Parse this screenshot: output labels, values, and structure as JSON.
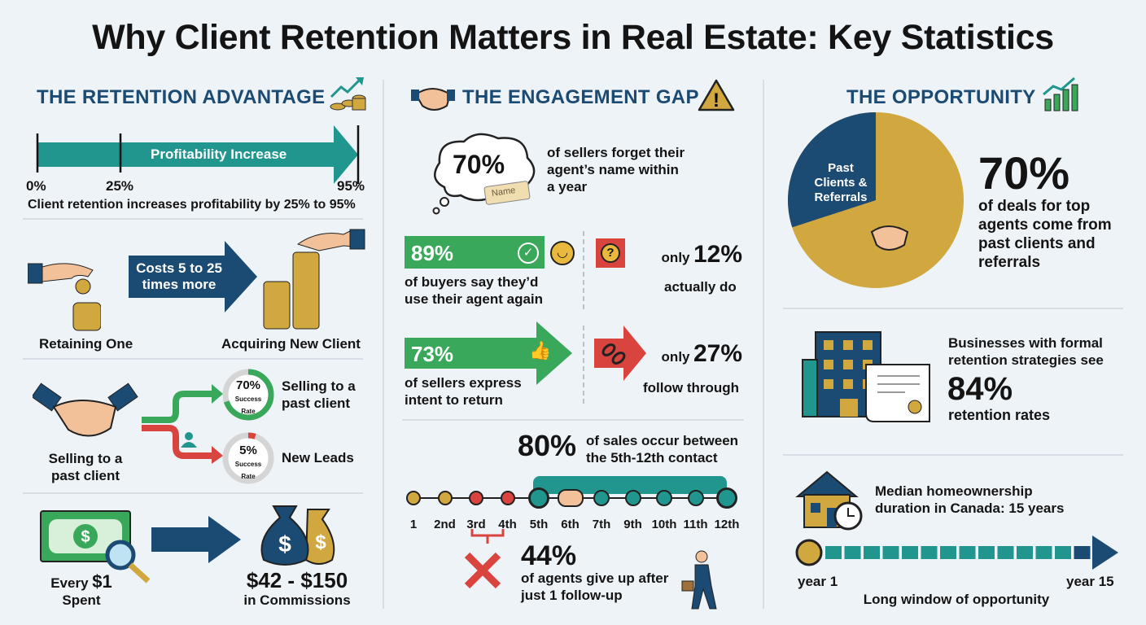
{
  "title": "Why Client Retention Matters in Real Estate: Key Statistics",
  "colors": {
    "navy": "#1b4a72",
    "teal": "#21968f",
    "green": "#3aa85a",
    "red": "#d9443e",
    "gold": "#d1a740"
  },
  "left": {
    "header": "THE RETENTION ADVANTAGE",
    "profit": {
      "bar_label": "Profitability Increase",
      "ticks": [
        "0%",
        "25%",
        "95%"
      ],
      "caption": "Client retention increases profitability by 25% to 95%"
    },
    "cost": {
      "arrow_line1": "Costs 5 to 25",
      "arrow_line2": "times more",
      "retain_label": "Retaining One",
      "acquire_label": "Acquiring New Client"
    },
    "selling": {
      "label_line1": "Selling to a",
      "label_line2": "past client",
      "past": {
        "value": "70%",
        "sub1": "Success",
        "sub2": "Rate",
        "text1": "Selling to a",
        "text2": "past client",
        "rate": 0.7
      },
      "new": {
        "value": "5%",
        "sub1": "Success",
        "sub2": "Rate",
        "text": "New Leads",
        "rate": 0.05
      }
    },
    "roi": {
      "every": "Every",
      "amount": "$1",
      "spent": "Spent",
      "return": "$42 - $150",
      "return_label": "in Commissions"
    }
  },
  "middle": {
    "header": "THE ENGAGEMENT GAP",
    "forget": {
      "value": "70%",
      "tag": "Name",
      "line1": "of sellers forget their",
      "line2": "agent’s name within",
      "line3": "a year"
    },
    "buyers": {
      "value": "89%",
      "line1": "of buyers say they’d",
      "line2": "use their agent again",
      "only": "only",
      "actual": "12%",
      "actual_label": "actually do"
    },
    "sellers": {
      "value": "73%",
      "line1": "of sellers express",
      "line2": "intent to return",
      "only": "only",
      "actual": "27%",
      "actual_label": "follow through"
    },
    "contacts": {
      "value": "80%",
      "line1": "of sales occur between",
      "line2": "the 5th-12th contact",
      "items": [
        {
          "label": "1",
          "status": "early"
        },
        {
          "label": "2nd",
          "status": "early"
        },
        {
          "label": "3rd",
          "status": "dropped"
        },
        {
          "label": "4th",
          "status": "dropped"
        },
        {
          "label": "5th",
          "status": "target-big"
        },
        {
          "label": "6th",
          "status": "handshake"
        },
        {
          "label": "7th",
          "status": "target"
        },
        {
          "label": "9th",
          "status": "target"
        },
        {
          "label": "10th",
          "status": "target"
        },
        {
          "label": "11th",
          "status": "target"
        },
        {
          "label": "12th",
          "status": "target-big"
        }
      ]
    },
    "giveup": {
      "value": "44%",
      "line1": "of agents give up after",
      "line2": "just 1 follow-up"
    }
  },
  "right": {
    "header": "THE OPPORTUNITY",
    "pie": {
      "slice_label1": "Past",
      "slice_label2": "Clients &",
      "slice_label3": "Referrals",
      "share": 0.3
    },
    "deals": {
      "value": "70%",
      "line1": "of deals for top",
      "line2": "agents come from",
      "line3": "past clients and",
      "line4": "referrals"
    },
    "formal": {
      "line1": "Businesses with formal",
      "line2": "retention strategies see",
      "value": "84%",
      "line3": "retention rates"
    },
    "duration": {
      "line1": "Median homeownership",
      "line2": "duration in Canada:",
      "years": "15 years",
      "start": "year 1",
      "end": "year 15",
      "caption": "Long window of opportunity"
    }
  }
}
